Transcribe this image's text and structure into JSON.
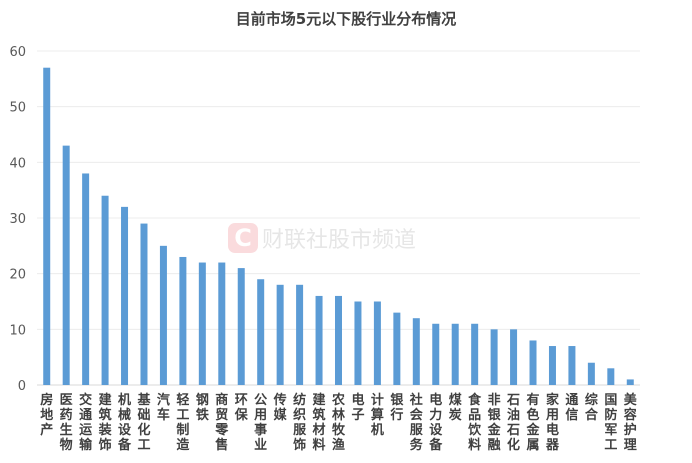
{
  "chart_data": {
    "type": "bar",
    "title": "目前市场5元以下股行业分布情况",
    "xlabel": "",
    "ylabel": "",
    "ylim": [
      0,
      60
    ],
    "yticks": [
      0,
      10,
      20,
      30,
      40,
      50,
      60
    ],
    "grid": true,
    "color": "#5b9bd5",
    "categories": [
      "房地产",
      "医药生物",
      "交通运输",
      "建筑装饰",
      "机械设备",
      "基础化工",
      "汽车",
      "轻工制造",
      "钢铁",
      "商贸零售",
      "环保",
      "公用事业",
      "传媒",
      "纺织服饰",
      "建筑材料",
      "农林牧渔",
      "电子",
      "计算机",
      "银行",
      "社会服务",
      "电力设备",
      "煤炭",
      "食品饮料",
      "非银金融",
      "石油石化",
      "有色金属",
      "家用电器",
      "通信",
      "综合",
      "国防军工",
      "美容护理"
    ],
    "values": [
      57,
      43,
      38,
      34,
      32,
      29,
      25,
      23,
      22,
      22,
      21,
      19,
      18,
      18,
      16,
      16,
      15,
      15,
      13,
      12,
      11,
      11,
      11,
      10,
      10,
      8,
      7,
      7,
      4,
      3,
      1
    ]
  },
  "watermark": {
    "logo": "C",
    "text": "财联社股市频道"
  }
}
